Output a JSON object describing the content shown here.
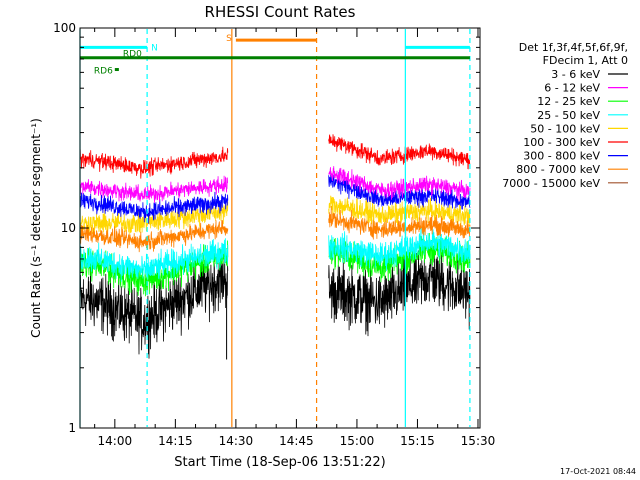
{
  "chart_data": {
    "type": "line",
    "title": "RHESSI Count Rates",
    "xlabel": "Start Time (18-Sep-06 13:51:22)",
    "ylabel": "Count Rate (s⁻¹ detector segment⁻¹)",
    "y_scale": "log",
    "ylim": [
      1,
      100
    ],
    "xlim": [
      "13:51:22",
      "15:30:30"
    ],
    "x_ticks": [
      "14:00",
      "14:15",
      "14:30",
      "14:45",
      "15:00",
      "15:15",
      "15:30"
    ],
    "y_ticks": [
      "1",
      "10",
      "100"
    ],
    "timestamp": "17-Oct-2021 08:44",
    "legend": {
      "placement": "right",
      "header": [
        "Det 1f,3f,4f,5f,6f,9f,",
        "FDecim 1, Att 0"
      ]
    },
    "series": [
      {
        "name": "3 - 6 keV",
        "color": "#000000",
        "values": [
          [
            "13:54",
            4.4
          ],
          [
            "14:07",
            3.4
          ],
          [
            "14:27",
            5.6
          ],
          [
            "14:54",
            4.8
          ],
          [
            "15:06",
            4.2
          ],
          [
            "15:18",
            5.7
          ],
          [
            "15:28",
            4.7
          ]
        ]
      },
      {
        "name": "6 - 12 keV",
        "color": "#ff00ff",
        "values": [
          [
            "13:54",
            16.0
          ],
          [
            "14:07",
            14.6
          ],
          [
            "14:27",
            16.5
          ],
          [
            "14:54",
            18.8
          ],
          [
            "15:06",
            15.4
          ],
          [
            "15:18",
            16.5
          ],
          [
            "15:28",
            15.2
          ]
        ]
      },
      {
        "name": "12 - 25 keV",
        "color": "#00ff00",
        "values": [
          [
            "13:54",
            6.6
          ],
          [
            "14:07",
            5.4
          ],
          [
            "14:27",
            7.2
          ],
          [
            "14:54",
            7.7
          ],
          [
            "15:06",
            6.3
          ],
          [
            "15:18",
            7.9
          ],
          [
            "15:28",
            6.9
          ]
        ]
      },
      {
        "name": "25 - 50 keV",
        "color": "#00ffff",
        "values": [
          [
            "13:54",
            7.1
          ],
          [
            "14:07",
            6.1
          ],
          [
            "14:27",
            7.6
          ],
          [
            "14:54",
            8.2
          ],
          [
            "15:06",
            7.2
          ],
          [
            "15:18",
            8.6
          ],
          [
            "15:28",
            7.6
          ]
        ]
      },
      {
        "name": "50 - 100 keV",
        "color": "#ffd700",
        "values": [
          [
            "13:54",
            10.5
          ],
          [
            "14:07",
            10.6
          ],
          [
            "14:27",
            12.1
          ],
          [
            "14:54",
            13.2
          ],
          [
            "15:06",
            11.5
          ],
          [
            "15:18",
            12.2
          ],
          [
            "15:28",
            11.4
          ]
        ]
      },
      {
        "name": "100 - 300 keV",
        "color": "#ff0000",
        "values": [
          [
            "13:54",
            22.0
          ],
          [
            "14:07",
            19.8
          ],
          [
            "14:27",
            22.9
          ],
          [
            "14:54",
            27.3
          ],
          [
            "15:06",
            22.1
          ],
          [
            "15:18",
            24.4
          ],
          [
            "15:28",
            21.8
          ]
        ]
      },
      {
        "name": "300 - 800 keV",
        "color": "#0000ff",
        "values": [
          [
            "13:54",
            13.6
          ],
          [
            "14:07",
            12.0
          ],
          [
            "14:27",
            13.5
          ],
          [
            "14:54",
            17.2
          ],
          [
            "15:06",
            13.8
          ],
          [
            "15:18",
            14.6
          ],
          [
            "15:28",
            13.4
          ]
        ]
      },
      {
        "name": "800 - 7000 keV",
        "color": "#ff8000",
        "values": [
          [
            "13:54",
            9.3
          ],
          [
            "14:07",
            8.5
          ],
          [
            "14:27",
            10.0
          ],
          [
            "14:54",
            11.1
          ],
          [
            "15:06",
            9.8
          ],
          [
            "15:18",
            10.4
          ],
          [
            "15:28",
            9.7
          ]
        ]
      },
      {
        "name": "7000 - 15000 keV",
        "color": "#a0522d",
        "values": []
      }
    ],
    "data_gap": [
      "14:28",
      "14:53"
    ],
    "vertical_markers": [
      {
        "time": "13:51:22",
        "color": "#00ffff",
        "style": "solid"
      },
      {
        "time": "14:08",
        "color": "#00ffff",
        "style": "dashed"
      },
      {
        "time": "14:29",
        "color": "#ff8000",
        "style": "solid"
      },
      {
        "time": "14:50",
        "color": "#ff8000",
        "style": "dashed"
      },
      {
        "time": "15:12",
        "color": "#00ffff",
        "style": "solid"
      },
      {
        "time": "15:28",
        "color": "#00ffff",
        "style": "dashed"
      }
    ],
    "flag_bars": [
      {
        "label": "N",
        "color": "#00ffff",
        "start": "13:51:22",
        "end": "14:08",
        "y": 80
      },
      {
        "label": "S",
        "color": "#ff8000",
        "start": "14:30",
        "end": "14:50",
        "y": 87
      },
      {
        "label": "",
        "color": "#00ffff",
        "start": "15:12",
        "end": "15:28",
        "y": 80
      },
      {
        "label": "RD0",
        "color": "#008000",
        "start": "13:51:22",
        "end": "15:28",
        "y": 71
      },
      {
        "label": "RD6",
        "color": "#008000",
        "start": "14:00",
        "end": "14:01",
        "y": 62
      }
    ]
  }
}
